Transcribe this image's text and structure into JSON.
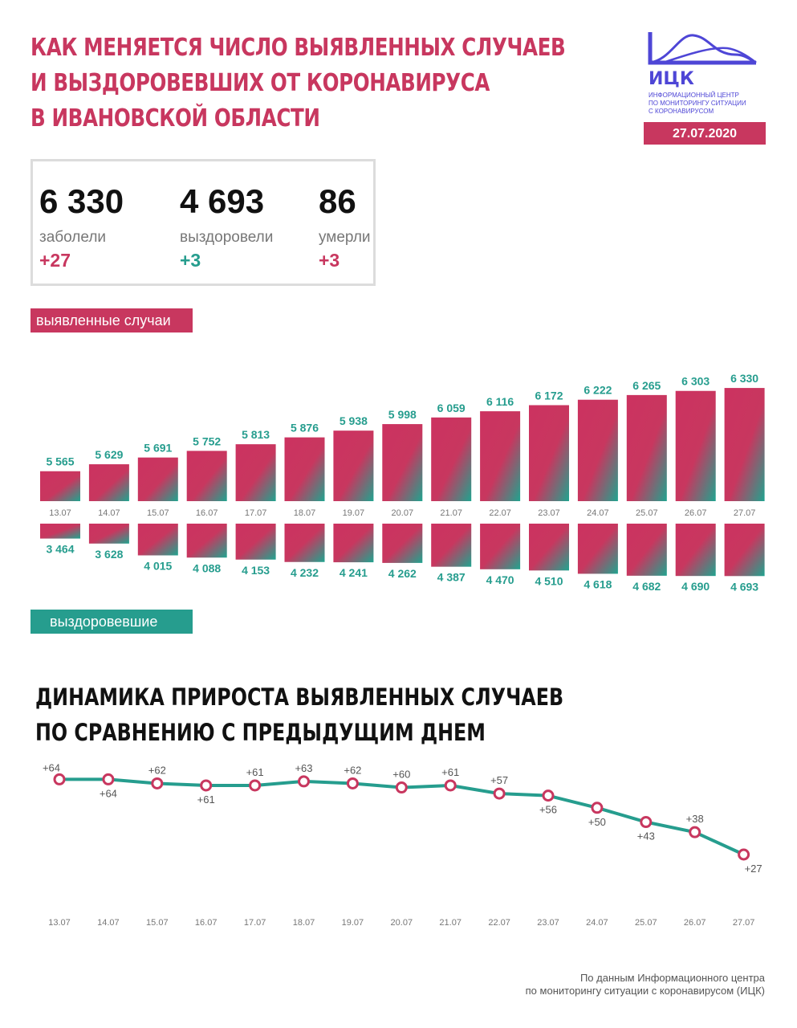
{
  "header": {
    "title_lines": [
      "КАК МЕНЯЕТСЯ ЧИСЛО ВЫЯВЛЕННЫХ СЛУЧАЕВ",
      "И ВЫЗДОРОВЕВШИХ ОТ КОРОНАВИРУСА",
      "В ИВАНОВСКОЙ ОБЛАСТИ"
    ],
    "logo_name": "ИЦК",
    "logo_sub_lines": [
      "ИНФОРМАЦИОННЫЙ ЦЕНТР",
      "ПО МОНИТОРИНГУ СИТУАЦИИ",
      "С КОРОНАВИРУСОМ"
    ],
    "date": "27.07.2020"
  },
  "stats": {
    "cases": {
      "value": "6 330",
      "label": "заболели",
      "delta": "+27"
    },
    "recovered": {
      "value": "4 693",
      "label": "выздоровели",
      "delta": "+3"
    },
    "deaths": {
      "value": "86",
      "label": "умерли",
      "delta": "+3"
    }
  },
  "tags": {
    "cases": "выявленные случаи",
    "recovered": "выздоровевшие"
  },
  "colors": {
    "pink": "#c8375f",
    "teal": "#269d8e",
    "logo_blue": "#4e46d6"
  },
  "chart_data": [
    {
      "type": "bar",
      "categories": [
        "13.07",
        "14.07",
        "15.07",
        "16.07",
        "17.07",
        "18.07",
        "19.07",
        "20.07",
        "21.07",
        "22.07",
        "23.07",
        "24.07",
        "25.07",
        "26.07",
        "27.07"
      ],
      "series": [
        {
          "name": "выявленные случаи",
          "values": [
            5565,
            5629,
            5691,
            5752,
            5813,
            5876,
            5938,
            5998,
            6059,
            6116,
            6172,
            6222,
            6265,
            6303,
            6330
          ],
          "labels": [
            "5 565",
            "5 629",
            "5 691",
            "5 752",
            "5 813",
            "5 876",
            "5 938",
            "5 998",
            "6 059",
            "6 116",
            "6 172",
            "6 222",
            "6 265",
            "6 303",
            "6 330"
          ]
        },
        {
          "name": "выздоровевшие",
          "values": [
            3464,
            3628,
            4015,
            4088,
            4153,
            4232,
            4241,
            4262,
            4387,
            4470,
            4510,
            4618,
            4682,
            4690,
            4693
          ],
          "labels": [
            "3 464",
            "3 628",
            "4 015",
            "4 088",
            "4 153",
            "4 232",
            "4 241",
            "4 262",
            "4 387",
            "4 470",
            "4 510",
            "4 618",
            "4 682",
            "4 690",
            "4 693"
          ]
        }
      ]
    },
    {
      "type": "line",
      "title": "ДИНАМИКА ПРИРОСТА ВЫЯВЛЕННЫХ СЛУЧАЕВ ПО СРАВНЕНИЮ С ПРЕДЫДУЩИМ ДНЕМ",
      "title_lines": [
        "ДИНАМИКА ПРИРОСТА ВЫЯВЛЕННЫХ СЛУЧАЕВ",
        "ПО СРАВНЕНИЮ С ПРЕДЫДУЩИМ ДНЕМ"
      ],
      "categories": [
        "13.07",
        "14.07",
        "15.07",
        "16.07",
        "17.07",
        "18.07",
        "19.07",
        "20.07",
        "21.07",
        "22.07",
        "23.07",
        "24.07",
        "25.07",
        "26.07",
        "27.07"
      ],
      "values": [
        64,
        64,
        62,
        61,
        61,
        63,
        62,
        60,
        61,
        57,
        56,
        50,
        43,
        38,
        27
      ],
      "labels": [
        "+64",
        "+64",
        "+62",
        "+61",
        "+61",
        "+63",
        "+62",
        "+60",
        "+61",
        "+57",
        "+56",
        "+50",
        "+43",
        "+38",
        "+27"
      ]
    }
  ],
  "source_lines": [
    "По данным Информационного центра",
    "по мониторингу ситуации с коронавирусом (ИЦК)"
  ]
}
